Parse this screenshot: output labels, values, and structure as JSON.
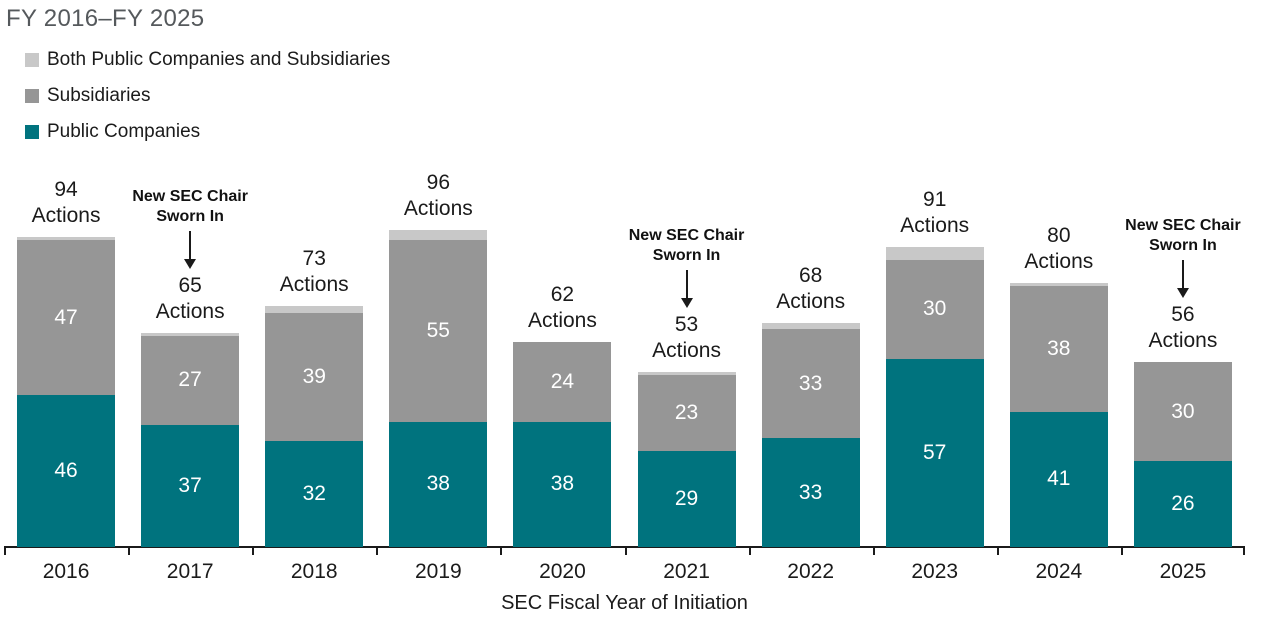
{
  "colors": {
    "public_companies": "#00737E",
    "subsidiaries": "#969696",
    "both": "#C8C8C8",
    "title_text": "#55595C",
    "label_text": "#1B1B1B",
    "axis": "#1B1B1B"
  },
  "chart_data": {
    "type": "bar",
    "stacked": true,
    "title": "FY 2016–FY 2025",
    "xlabel": "SEC Fiscal Year of Initiation",
    "legend_position": "top-left",
    "grid": false,
    "categories": [
      "2016",
      "2017",
      "2018",
      "2019",
      "2020",
      "2021",
      "2022",
      "2023",
      "2024",
      "2025"
    ],
    "series": [
      {
        "name": "Public Companies",
        "color": "#00737E",
        "values": [
          46,
          37,
          32,
          38,
          38,
          29,
          33,
          57,
          41,
          26
        ]
      },
      {
        "name": "Subsidiaries",
        "color": "#969696",
        "values": [
          47,
          27,
          39,
          55,
          24,
          23,
          33,
          30,
          38,
          30
        ]
      },
      {
        "name": "Both Public Companies and Subsidiaries",
        "color": "#C8C8C8",
        "values": [
          1,
          1,
          2,
          3,
          0,
          1,
          2,
          4,
          1,
          0
        ]
      }
    ],
    "totals": [
      94,
      65,
      73,
      96,
      62,
      53,
      68,
      91,
      80,
      56
    ],
    "total_label_suffix": "Actions",
    "min_value_for_segment_label": 10,
    "annotations": [
      {
        "category": "2017",
        "lines": [
          "New SEC Chair",
          "Sworn In"
        ]
      },
      {
        "category": "2021",
        "lines": [
          "New SEC Chair",
          "Sworn In"
        ]
      },
      {
        "category": "2025",
        "lines": [
          "New SEC Chair",
          "Sworn In"
        ]
      }
    ]
  }
}
